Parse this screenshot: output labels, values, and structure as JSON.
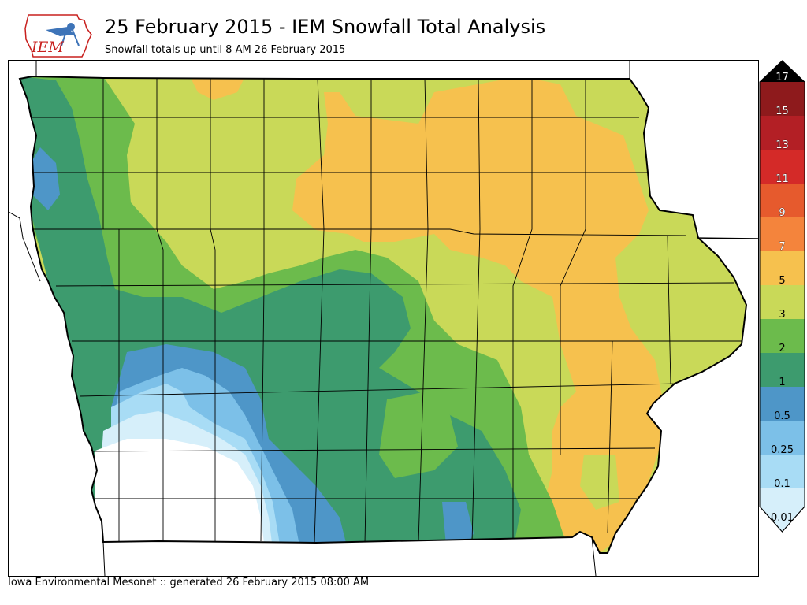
{
  "header": {
    "title": "25 February 2015 - IEM Snowfall Total Analysis",
    "subtitle": "Snowfall totals up until 8 AM 26 February 2015",
    "logo_text": "IEM"
  },
  "footer": {
    "text": "Iowa Environmental Mesonet :: generated 26 February 2015 08:00 AM"
  },
  "legend": {
    "levels": [
      {
        "label": "0.01",
        "color": "#d6effa"
      },
      {
        "label": "0.1",
        "color": "#a8dcf5"
      },
      {
        "label": "0.25",
        "color": "#7cc0e8"
      },
      {
        "label": "0.5",
        "color": "#4e96c8"
      },
      {
        "label": "1",
        "color": "#3d9b6e"
      },
      {
        "label": "2",
        "color": "#6cbb4c"
      },
      {
        "label": "3",
        "color": "#c9d958"
      },
      {
        "label": "5",
        "color": "#f6c14e"
      },
      {
        "label": "7",
        "color": "#f4843c"
      },
      {
        "label": "9",
        "color": "#e65a2d"
      },
      {
        "label": "11",
        "color": "#d42a28"
      },
      {
        "label": "13",
        "color": "#b31f25"
      },
      {
        "label": "15",
        "color": "#8e1a1c"
      },
      {
        "label": "17",
        "color": "#000000"
      }
    ]
  }
}
